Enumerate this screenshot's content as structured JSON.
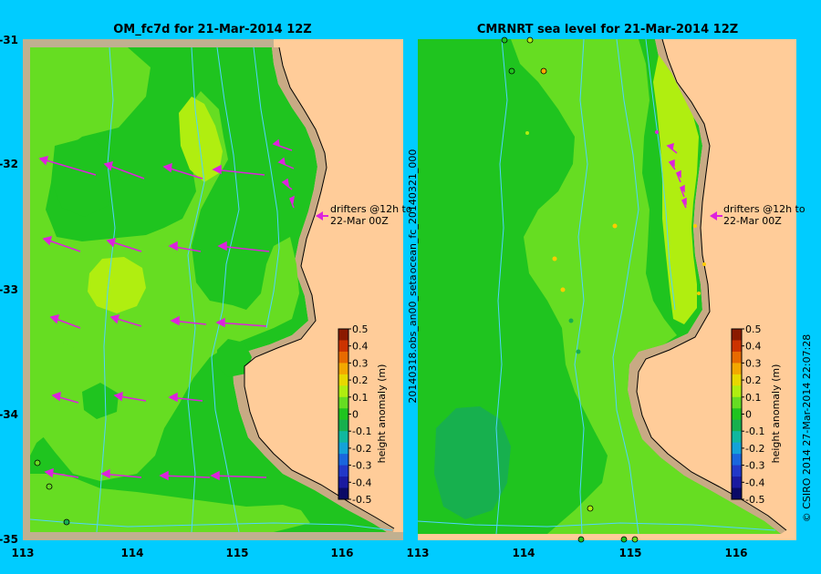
{
  "panels": [
    {
      "title": "OM_fc7d for 21-Mar-2014 12Z",
      "drifter_note": [
        "drifters @12h to",
        "22-Mar 00Z"
      ]
    },
    {
      "title": "CMRNRT sea level  for 21-Mar-2014 12Z",
      "drifter_note": [
        "drifters @12h to",
        "22-Mar 00Z"
      ]
    }
  ],
  "map_extent": {
    "lon": [
      113,
      116.6
    ],
    "lat": [
      -35,
      -31
    ]
  },
  "lat_ticks": [
    "-31",
    "-32",
    "-33",
    "-34",
    "-35"
  ],
  "lon_ticks": [
    "113",
    "114",
    "115",
    "116"
  ],
  "colorbar": {
    "label": "height anomaly (m)",
    "ticks": [
      "0.5",
      "0.4",
      "0.3",
      "0.2",
      "0.1",
      "0",
      "-0.1",
      "-0.2",
      "-0.3",
      "-0.4",
      "-0.5"
    ],
    "range": [
      -0.5,
      0.5
    ]
  },
  "side_labels": {
    "run_id_top": "ocean_fc_20140321_000",
    "run_id_bottom": "20140318.obs_an00_seta",
    "credit": "© CSIRO 2014   27-Mar-2014 22:07:28"
  },
  "colors": {
    "background": "#00ccff",
    "land": "#ffcc99",
    "shelf": "#c8aa84",
    "mask": "#c0b090",
    "anomaly_0": "#1fc41f",
    "anomaly_pos_005": "#66dd22",
    "anomaly_pos_01": "#b0ee10",
    "anomaly_neg_01": "#17b04e",
    "drifter_arrow": "#dd22dd",
    "isobath": "#4fd4ff"
  }
}
